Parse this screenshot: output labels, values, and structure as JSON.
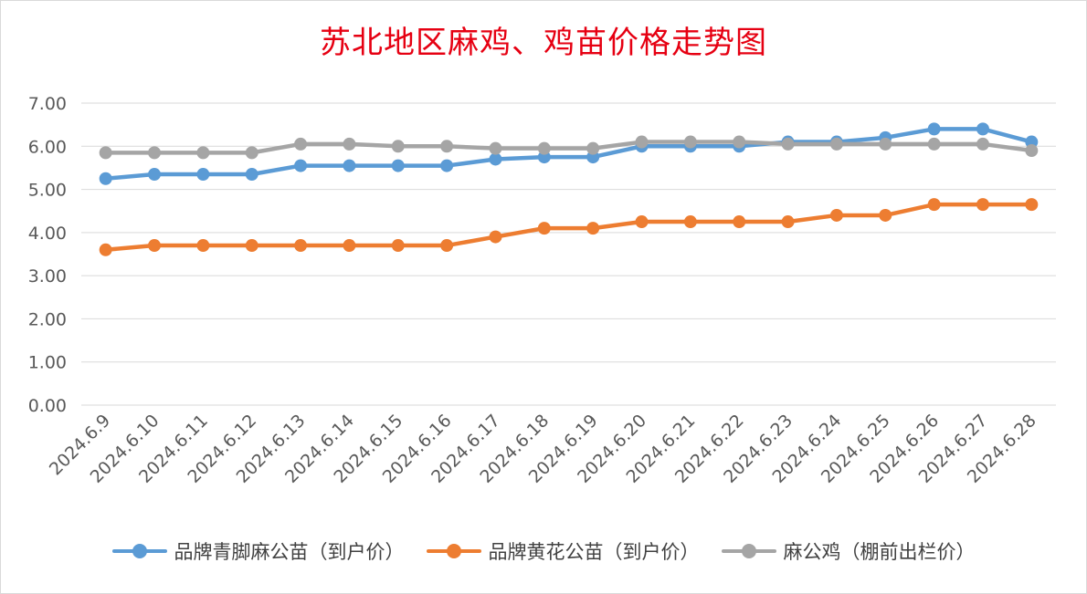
{
  "chart_data": {
    "type": "line",
    "title": "苏北地区麻鸡、鸡苗价格走势图",
    "xlabel": "",
    "ylabel": "",
    "categories": [
      "2024.6.9",
      "2024.6.10",
      "2024.6.11",
      "2024.6.12",
      "2024.6.13",
      "2024.6.14",
      "2024.6.15",
      "2024.6.16",
      "2024.6.17",
      "2024.6.18",
      "2024.6.19",
      "2024.6.20",
      "2024.6.21",
      "2024.6.22",
      "2024.6.23",
      "2024.6.24",
      "2024.6.25",
      "2024.6.26",
      "2024.6.27",
      "2024.6.28"
    ],
    "ylim": [
      0,
      7
    ],
    "yticks": [
      "0.00",
      "1.00",
      "2.00",
      "3.00",
      "4.00",
      "5.00",
      "6.00",
      "7.00"
    ],
    "grid": true,
    "legend_position": "bottom",
    "series": [
      {
        "name": "品牌青脚麻公苗（到户价）",
        "color": "#5b9bd5",
        "values": [
          5.25,
          5.35,
          5.35,
          5.35,
          5.55,
          5.55,
          5.55,
          5.55,
          5.7,
          5.75,
          5.75,
          6.0,
          6.0,
          6.0,
          6.1,
          6.1,
          6.2,
          6.4,
          6.4,
          6.1
        ]
      },
      {
        "name": "品牌黄花公苗（到户价）",
        "color": "#ed7d31",
        "values": [
          3.6,
          3.7,
          3.7,
          3.7,
          3.7,
          3.7,
          3.7,
          3.7,
          3.9,
          4.1,
          4.1,
          4.25,
          4.25,
          4.25,
          4.25,
          4.4,
          4.4,
          4.65,
          4.65,
          4.65
        ]
      },
      {
        "name": "麻公鸡（棚前出栏价）",
        "color": "#a5a5a5",
        "values": [
          5.85,
          5.85,
          5.85,
          5.85,
          6.05,
          6.05,
          6.0,
          6.0,
          5.95,
          5.95,
          5.95,
          6.1,
          6.1,
          6.1,
          6.05,
          6.05,
          6.05,
          6.05,
          6.05,
          5.9
        ]
      }
    ]
  }
}
